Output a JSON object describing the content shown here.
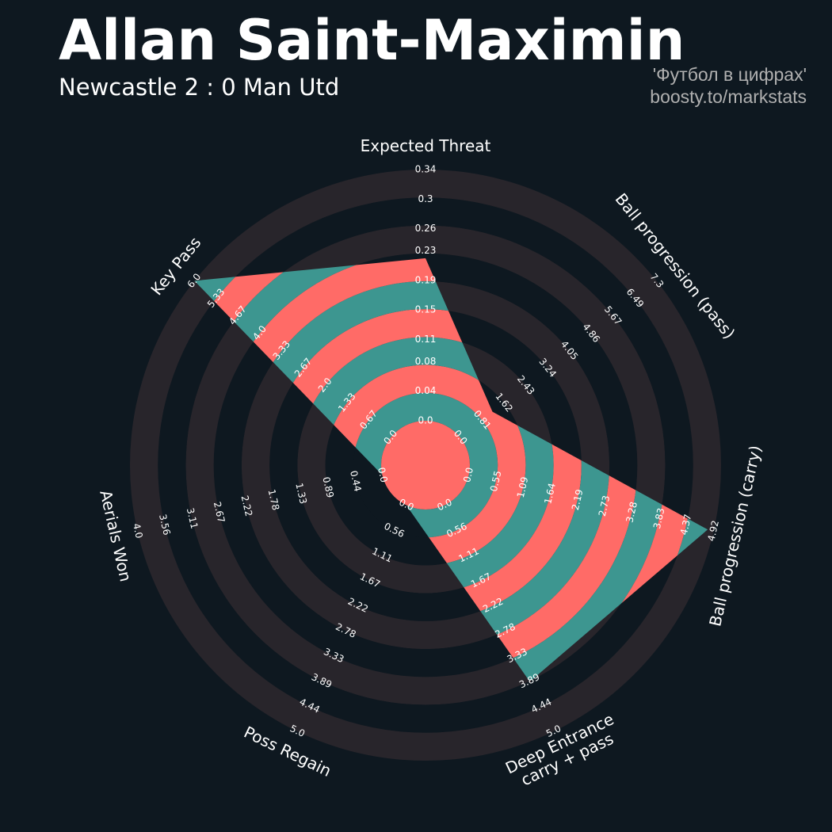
{
  "chart_data": {
    "type": "radar",
    "title": "Allan Saint-Maximin",
    "subtitle": "Newcastle 2 : 0 Man Utd",
    "annotations": [
      "'Футбол в цифрах'",
      "boosty.to/markstats"
    ],
    "categories": [
      [
        "Expected Threat"
      ],
      [
        "Ball progression (pass)"
      ],
      [
        "Ball progression (carry)"
      ],
      [
        "Deep Entrance",
        "carry + pass"
      ],
      [
        "Poss Regain"
      ],
      [
        "Aerials Won"
      ],
      [
        "Key Pass"
      ]
    ],
    "values": [
      0.22,
      1.2,
      4.8,
      3.9,
      0,
      0,
      6.0
    ],
    "ranges": [
      [
        0,
        0.34
      ],
      [
        0,
        7.3
      ],
      [
        0,
        4.92
      ],
      [
        0,
        5
      ],
      [
        0,
        5
      ],
      [
        0,
        4
      ],
      [
        0,
        6
      ]
    ],
    "ticks": [
      [
        {
          "value": 0,
          "label": "0.0"
        },
        0.04,
        0.08,
        0.11,
        0.15,
        0.19,
        0.23,
        0.26,
        0.3,
        0.34
      ],
      [
        {
          "value": 0,
          "label": "0.0"
        },
        0.81,
        1.62,
        2.43,
        3.24,
        4.05,
        4.86,
        5.67,
        6.49,
        7.3
      ],
      [
        {
          "value": 0,
          "label": "0.0"
        },
        0.55,
        1.09,
        1.64,
        2.19,
        2.73,
        3.28,
        3.83,
        4.37,
        4.92
      ],
      [
        {
          "value": 0,
          "label": "0.0"
        },
        0.56,
        1.11,
        1.67,
        2.22,
        2.78,
        3.33,
        3.89,
        4.44,
        {
          "value": 5,
          "label": "5.0"
        }
      ],
      [
        {
          "value": 0,
          "label": "0.0"
        },
        0.56,
        1.11,
        1.67,
        2.22,
        2.78,
        3.33,
        3.89,
        4.44,
        {
          "value": 5,
          "label": "5.0"
        }
      ],
      [
        {
          "value": 0,
          "label": "0.0"
        },
        0.44,
        0.89,
        1.33,
        1.78,
        2.22,
        2.67,
        3.11,
        3.56,
        {
          "value": 4,
          "label": "4.0"
        }
      ],
      [
        {
          "value": 0,
          "label": "0.0"
        },
        0.67,
        1.33,
        {
          "value": 2,
          "label": "2.0"
        },
        2.67,
        3.33,
        {
          "value": 4,
          "label": "4.0"
        },
        4.67,
        5.33,
        {
          "value": 6,
          "label": "6.0"
        }
      ]
    ],
    "ring_colors": [
      "#0e1820",
      "#28252b"
    ],
    "fill_colors": [
      "#3d9690",
      "#ff6b67"
    ]
  }
}
